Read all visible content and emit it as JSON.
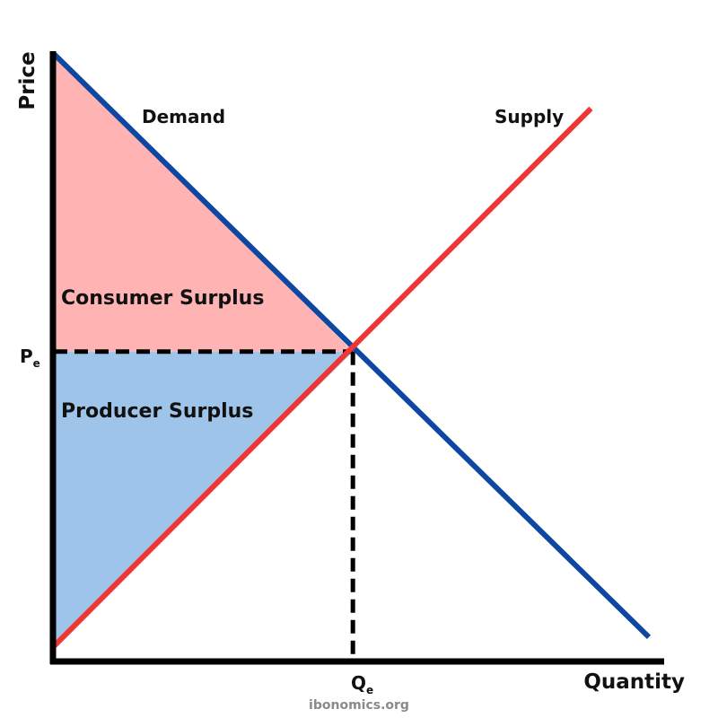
{
  "chart_data": {
    "type": "line",
    "title": "",
    "xlabel": "Quantity",
    "ylabel": "Price",
    "xlim": [
      0,
      10
    ],
    "ylim": [
      0,
      10
    ],
    "grid": false,
    "series": [
      {
        "name": "Demand",
        "x": [
          0,
          9.75
        ],
        "y": [
          10,
          0.4
        ],
        "color": "#0d47a1"
      },
      {
        "name": "Supply",
        "x": [
          0,
          8.8
        ],
        "y": [
          0.25,
          9.1
        ],
        "color": "#f03535"
      }
    ],
    "equilibrium": {
      "x": 4.9,
      "y": 5.1,
      "x_label": {
        "main": "Q",
        "sub": "e"
      },
      "y_label": {
        "main": "P",
        "sub": "e"
      }
    },
    "areas": [
      {
        "name": "Consumer Surplus",
        "color": "#ffb3b3"
      },
      {
        "name": "Producer Surplus",
        "color": "#9ec4ea"
      }
    ],
    "source": "ibonomics.org"
  },
  "colors": {
    "axis": "#000000",
    "guide": "#000000"
  }
}
